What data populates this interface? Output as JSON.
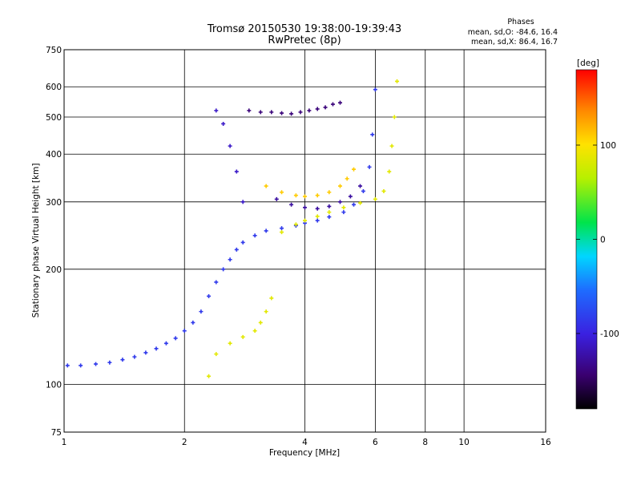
{
  "chart_data": {
    "type": "scatter",
    "title": "Tromsø 20150530 19:38:00-19:39:43",
    "subtitle": "RwPretec (8p)",
    "xlabel": "Frequency [MHz]",
    "ylabel": "Stationary phase Virtual Height [km]",
    "xscale": "log",
    "yscale": "log",
    "xlim": [
      1,
      16
    ],
    "ylim": [
      75,
      750
    ],
    "x_ticks": [
      1,
      2,
      4,
      6,
      8,
      10,
      16
    ],
    "y_ticks": [
      75,
      100,
      200,
      300,
      400,
      500,
      600,
      750
    ],
    "grid": true,
    "colorbar": {
      "label": "[deg]",
      "range": [
        -180,
        180
      ],
      "ticks": [
        100,
        0,
        -100
      ],
      "colormap": "rainbow"
    },
    "stats_block": {
      "heading": "Phases",
      "line_o": "mean, sd,O: -84.6, 16.4",
      "line_x": "mean, sd,X:  86.4, 16.7"
    },
    "series": [
      {
        "mode": "O",
        "color_value": -84.6,
        "x": [
          1.02,
          1.1,
          1.2,
          1.3,
          1.4,
          1.5,
          1.6,
          1.7,
          1.8,
          1.9,
          2.0,
          2.1,
          2.2,
          2.3,
          2.4,
          2.5,
          2.6,
          2.7,
          2.8,
          3.0,
          3.2,
          3.5,
          3.8,
          4.0,
          4.3,
          4.6,
          5.0,
          5.3,
          5.6,
          5.8,
          5.9,
          6.0
        ],
        "y": [
          112,
          112,
          113,
          114,
          116,
          118,
          121,
          124,
          128,
          132,
          138,
          145,
          155,
          170,
          185,
          200,
          212,
          225,
          235,
          245,
          252,
          256,
          260,
          264,
          268,
          274,
          282,
          295,
          320,
          370,
          450,
          590
        ]
      },
      {
        "mode": "X",
        "color_value": 86.4,
        "x": [
          2.3,
          2.4,
          2.6,
          2.8,
          3.0,
          3.1,
          3.2,
          3.3,
          3.5,
          3.8,
          4.0,
          4.3,
          4.6,
          5.0,
          5.5,
          6.0,
          6.3,
          6.5,
          6.6,
          6.7,
          6.8
        ],
        "y": [
          105,
          120,
          128,
          133,
          138,
          145,
          155,
          168,
          250,
          262,
          268,
          275,
          282,
          290,
          298,
          305,
          320,
          360,
          420,
          500,
          620
        ]
      },
      {
        "mode": "O-oblique",
        "color_value": -110,
        "x": [
          2.4,
          2.5,
          2.6,
          2.7,
          2.8
        ],
        "y": [
          520,
          480,
          420,
          360,
          300
        ]
      },
      {
        "mode": "O-high",
        "color_value": -140,
        "x": [
          2.9,
          3.1,
          3.3,
          3.5,
          3.7,
          3.9,
          4.1,
          4.3,
          4.5,
          4.7,
          4.9
        ],
        "y": [
          520,
          515,
          515,
          512,
          510,
          515,
          520,
          525,
          530,
          540,
          545
        ]
      },
      {
        "mode": "X-arc",
        "color_value": 110,
        "x": [
          3.2,
          3.5,
          3.8,
          4.0,
          4.3,
          4.6,
          4.9,
          5.1,
          5.3
        ],
        "y": [
          330,
          318,
          312,
          310,
          312,
          318,
          330,
          345,
          365
        ]
      },
      {
        "mode": "O-arc",
        "color_value": -125,
        "x": [
          3.4,
          3.7,
          4.0,
          4.3,
          4.6,
          4.9,
          5.2,
          5.5
        ],
        "y": [
          305,
          295,
          290,
          288,
          292,
          300,
          310,
          330
        ]
      }
    ]
  }
}
